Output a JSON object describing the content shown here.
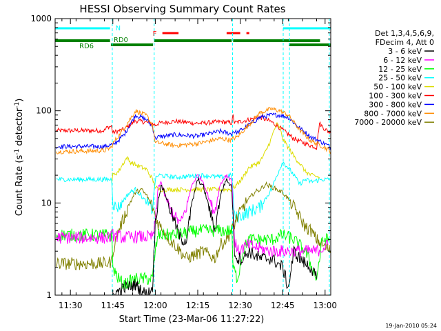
{
  "chart_data": {
    "type": "line",
    "title": "HESSI Observing Summary Count Rates",
    "xlabel": "Start Time (23-Mar-06 11:27:22)",
    "ylabel_main": "Count Rate (s",
    "ylabel_sup1": "-1",
    "ylabel_mid": " detector",
    "ylabel_sup2": "-1",
    "ylabel_end": ")",
    "yscale": "log",
    "xlim_min": [
      -2.4,
      95
    ],
    "ylim": [
      1,
      1000
    ],
    "x_ticks": [
      {
        "m": 3,
        "label": "11:30"
      },
      {
        "m": 18,
        "label": "11:45"
      },
      {
        "m": 33,
        "label": "12:00"
      },
      {
        "m": 48,
        "label": "12:15"
      },
      {
        "m": 63,
        "label": "12:30"
      },
      {
        "m": 78,
        "label": "12:45"
      },
      {
        "m": 93,
        "label": "13:00"
      }
    ],
    "y_ticks": [
      {
        "v": 1,
        "label": "1"
      },
      {
        "v": 10,
        "label": "10"
      },
      {
        "v": 100,
        "label": "100"
      },
      {
        "v": 1000,
        "label": "1000"
      }
    ],
    "legend": {
      "header": [
        "Det 1,3,4,5,6,9,",
        "FDecim 4, Att 0"
      ],
      "entries": [
        {
          "label": "3 - 6 keV",
          "color": "#000000"
        },
        {
          "label": "6 - 12 keV",
          "color": "#ff00ff"
        },
        {
          "label": "12 - 25 keV",
          "color": "#00ff00"
        },
        {
          "label": "25 - 50 keV",
          "color": "#00ffff"
        },
        {
          "label": "50 - 100 keV",
          "color": "#dddd00"
        },
        {
          "label": "100 - 300 keV",
          "color": "#ff0000"
        },
        {
          "label": "300 - 800 keV",
          "color": "#0000ff"
        },
        {
          "label": "800 - 7000 keV",
          "color": "#ff8c00"
        },
        {
          "label": "7000 - 20000 keV",
          "color": "#808000"
        }
      ]
    },
    "flags": {
      "night": {
        "label": "N",
        "color": "#00ffff",
        "intervals": [
          [
            -2.4,
            17.0
          ],
          [
            78.2,
            95
          ]
        ]
      },
      "flare": {
        "label": "F",
        "color": "#ff0000",
        "intervals": [
          [
            35.5,
            41.2
          ],
          [
            58.2,
            63.0
          ],
          [
            65.2,
            66.2
          ]
        ]
      },
      "rd0": {
        "label": "RD0",
        "color": "#008000",
        "intervals": [
          [
            17.3,
            32.2
          ],
          [
            80.2,
            95
          ]
        ]
      },
      "rd6": {
        "label": "RD6",
        "color": "#008000",
        "intervals": [
          [
            -2.4,
            17.0
          ],
          [
            32.6,
            60.0
          ],
          [
            60.5,
            91.2
          ]
        ]
      }
    },
    "saa_lines": [
      17.8,
      32.6,
      60.3,
      78.2,
      80.4,
      94.5
    ],
    "series": [
      {
        "name": "100 - 300 keV",
        "color": "#ff0000",
        "points": [
          [
            -2,
            61
          ],
          [
            15,
            61
          ],
          [
            16,
            66
          ],
          [
            17.5,
            68
          ],
          [
            18,
            58
          ],
          [
            22,
            63
          ],
          [
            26,
            78
          ],
          [
            30,
            75
          ],
          [
            32,
            72
          ],
          [
            33,
            70
          ],
          [
            34,
            73
          ],
          [
            40,
            77
          ],
          [
            48,
            73
          ],
          [
            56,
            76
          ],
          [
            60,
            74
          ],
          [
            60.5,
            88
          ],
          [
            61,
            74
          ],
          [
            66,
            80
          ],
          [
            70,
            85
          ],
          [
            74,
            76
          ],
          [
            78,
            62
          ],
          [
            82,
            50
          ],
          [
            86,
            44
          ],
          [
            90,
            40
          ],
          [
            91,
            73
          ],
          [
            93,
            63
          ],
          [
            95,
            57
          ]
        ]
      },
      {
        "name": "300 - 800 keV",
        "color": "#0000ff",
        "points": [
          [
            -2,
            41
          ],
          [
            15,
            41
          ],
          [
            17.5,
            43
          ],
          [
            18,
            42
          ],
          [
            22,
            55
          ],
          [
            26,
            90
          ],
          [
            30,
            80
          ],
          [
            32,
            67
          ],
          [
            33,
            50
          ],
          [
            34,
            52
          ],
          [
            40,
            55
          ],
          [
            48,
            53
          ],
          [
            56,
            60
          ],
          [
            60,
            56
          ],
          [
            60.5,
            60
          ],
          [
            62,
            58
          ],
          [
            66,
            70
          ],
          [
            70,
            85
          ],
          [
            74,
            90
          ],
          [
            77,
            90
          ],
          [
            80,
            85
          ],
          [
            84,
            65
          ],
          [
            88,
            52
          ],
          [
            91,
            47
          ],
          [
            94,
            42
          ],
          [
            95,
            40
          ]
        ]
      },
      {
        "name": "800 - 7000 keV",
        "color": "#ff8c00",
        "points": [
          [
            -2,
            36
          ],
          [
            15,
            37
          ],
          [
            17.5,
            40
          ],
          [
            18,
            44
          ],
          [
            22,
            65
          ],
          [
            26,
            100
          ],
          [
            30,
            88
          ],
          [
            32,
            70
          ],
          [
            33,
            45
          ],
          [
            34,
            45
          ],
          [
            40,
            42
          ],
          [
            48,
            44
          ],
          [
            56,
            50
          ],
          [
            60,
            48
          ],
          [
            60.5,
            50
          ],
          [
            62,
            52
          ],
          [
            66,
            70
          ],
          [
            70,
            95
          ],
          [
            74,
            105
          ],
          [
            77,
            100
          ],
          [
            80,
            90
          ],
          [
            84,
            62
          ],
          [
            88,
            47
          ],
          [
            91,
            43
          ],
          [
            94,
            38
          ],
          [
            95,
            36
          ]
        ]
      },
      {
        "name": "50 - 100 keV",
        "color": "#dddd00",
        "points": [
          [
            17.6,
            17
          ],
          [
            18,
            20
          ],
          [
            20,
            22
          ],
          [
            22,
            28
          ],
          [
            23,
            31
          ],
          [
            24,
            28
          ],
          [
            26,
            26
          ],
          [
            30,
            23
          ],
          [
            32,
            18
          ],
          [
            33,
            15
          ],
          [
            34,
            14
          ],
          [
            40,
            14
          ],
          [
            60,
            14
          ],
          [
            62,
            16
          ],
          [
            64,
            19
          ],
          [
            66,
            24
          ],
          [
            70,
            28
          ],
          [
            72,
            36
          ],
          [
            74,
            50
          ],
          [
            75,
            62
          ],
          [
            76,
            72
          ],
          [
            77,
            65
          ],
          [
            78,
            50
          ],
          [
            80,
            40
          ],
          [
            82,
            32
          ],
          [
            84,
            27
          ],
          [
            86,
            22
          ],
          [
            88,
            20
          ],
          [
            91,
            19
          ]
        ]
      },
      {
        "name": "25 - 50 keV",
        "color": "#00ffff",
        "points": [
          [
            -2,
            18
          ],
          [
            16,
            18
          ],
          [
            17.6,
            18
          ],
          [
            18,
            10
          ],
          [
            19,
            9
          ],
          [
            20,
            9
          ],
          [
            22,
            11
          ],
          [
            24,
            13
          ],
          [
            26,
            14
          ],
          [
            28,
            12
          ],
          [
            30,
            10
          ],
          [
            32,
            8.5
          ],
          [
            33,
            18
          ],
          [
            34,
            20
          ],
          [
            40,
            19
          ],
          [
            50,
            20
          ],
          [
            56,
            19
          ],
          [
            60,
            20
          ],
          [
            61,
            7
          ],
          [
            62,
            7
          ],
          [
            66,
            8
          ],
          [
            70,
            9
          ],
          [
            74,
            14
          ],
          [
            76,
            20
          ],
          [
            78,
            28
          ],
          [
            80,
            24
          ],
          [
            82,
            20
          ],
          [
            84,
            16
          ],
          [
            86,
            18
          ],
          [
            88,
            17
          ],
          [
            92,
            18
          ],
          [
            95,
            18
          ]
        ]
      },
      {
        "name": "7000 - 20000 keV",
        "color": "#808000",
        "points": [
          [
            -2,
            2.2
          ],
          [
            15,
            2.2
          ],
          [
            17.6,
            2.3
          ],
          [
            18,
            3
          ],
          [
            20,
            5
          ],
          [
            22,
            7
          ],
          [
            24,
            10
          ],
          [
            26,
            13
          ],
          [
            28,
            14
          ],
          [
            30,
            12
          ],
          [
            32,
            9
          ],
          [
            34,
            6
          ],
          [
            36,
            5
          ],
          [
            38,
            4
          ],
          [
            40,
            3.5
          ],
          [
            44,
            2.5
          ],
          [
            50,
            3
          ],
          [
            54,
            2.5
          ],
          [
            56,
            3.5
          ],
          [
            58,
            4
          ],
          [
            60,
            5
          ],
          [
            62,
            7
          ],
          [
            64,
            9
          ],
          [
            66,
            11
          ],
          [
            68,
            13
          ],
          [
            70,
            14
          ],
          [
            72,
            16
          ],
          [
            74,
            15
          ],
          [
            76,
            14
          ],
          [
            78,
            13
          ],
          [
            80,
            11
          ],
          [
            82,
            9
          ],
          [
            84,
            7
          ],
          [
            86,
            5.5
          ],
          [
            88,
            5
          ],
          [
            90,
            4
          ],
          [
            92,
            3.5
          ],
          [
            95,
            3
          ]
        ]
      },
      {
        "name": "12 - 25 keV",
        "color": "#00ff00",
        "points": [
          [
            -2,
            4.5
          ],
          [
            16,
            4.5
          ],
          [
            17.6,
            4.5
          ],
          [
            18,
            2
          ],
          [
            20,
            1.5
          ],
          [
            22,
            1.3
          ],
          [
            26,
            1.5
          ],
          [
            30,
            1.5
          ],
          [
            32,
            1.5
          ],
          [
            33,
            3
          ],
          [
            34,
            4.5
          ],
          [
            40,
            4.5
          ],
          [
            48,
            5
          ],
          [
            56,
            5
          ],
          [
            60,
            5
          ],
          [
            60.5,
            2
          ],
          [
            62,
            1.5
          ],
          [
            64,
            3
          ],
          [
            66,
            4
          ],
          [
            70,
            4
          ],
          [
            74,
            4
          ],
          [
            78,
            4.5
          ],
          [
            82,
            4
          ],
          [
            86,
            3
          ],
          [
            90,
            1.5
          ],
          [
            92,
            4
          ],
          [
            95,
            4
          ]
        ]
      },
      {
        "name": "6 - 12 keV",
        "color": "#ff00ff",
        "points": [
          [
            -2,
            4.2
          ],
          [
            16,
            4.2
          ],
          [
            17.6,
            4.3
          ],
          [
            18,
            4.5
          ],
          [
            22,
            4.2
          ],
          [
            26,
            4.3
          ],
          [
            30,
            4.3
          ],
          [
            32,
            4.3
          ],
          [
            33,
            6
          ],
          [
            34,
            15
          ],
          [
            35,
            17
          ],
          [
            36,
            13
          ],
          [
            38,
            9
          ],
          [
            40,
            7
          ],
          [
            42,
            6
          ],
          [
            44,
            9
          ],
          [
            46,
            16
          ],
          [
            48,
            20
          ],
          [
            50,
            17
          ],
          [
            52,
            11
          ],
          [
            54,
            8
          ],
          [
            56,
            16
          ],
          [
            58,
            20
          ],
          [
            60,
            18
          ],
          [
            61,
            4
          ],
          [
            62,
            3
          ],
          [
            66,
            3.5
          ],
          [
            70,
            3.2
          ],
          [
            74,
            3
          ],
          [
            78,
            3
          ],
          [
            82,
            3
          ],
          [
            86,
            3
          ],
          [
            90,
            3
          ],
          [
            94,
            3.5
          ]
        ]
      },
      {
        "name": "3 - 6 keV",
        "color": "#000000",
        "points": [
          [
            18,
            1
          ],
          [
            22,
            1.2
          ],
          [
            26,
            1.3
          ],
          [
            30,
            1
          ],
          [
            32,
            1.2
          ],
          [
            33,
            6
          ],
          [
            34,
            11
          ],
          [
            35,
            15
          ],
          [
            36,
            14
          ],
          [
            38,
            9
          ],
          [
            40,
            6
          ],
          [
            42,
            4
          ],
          [
            44,
            4
          ],
          [
            46,
            10
          ],
          [
            48,
            18
          ],
          [
            50,
            15
          ],
          [
            52,
            9
          ],
          [
            54,
            5
          ],
          [
            56,
            12
          ],
          [
            58,
            18
          ],
          [
            60,
            15
          ],
          [
            61,
            3
          ],
          [
            62,
            2.5
          ],
          [
            64,
            2.5
          ],
          [
            66,
            3
          ],
          [
            70,
            2.5
          ],
          [
            74,
            2.5
          ],
          [
            78,
            2
          ],
          [
            80,
            1.2
          ],
          [
            82,
            3
          ],
          [
            84,
            2.5
          ],
          [
            86,
            2.2
          ],
          [
            88,
            2
          ],
          [
            90,
            1.5
          ]
        ]
      }
    ]
  },
  "footer": {
    "timestamp": "19-Jan-2010 05:24"
  }
}
